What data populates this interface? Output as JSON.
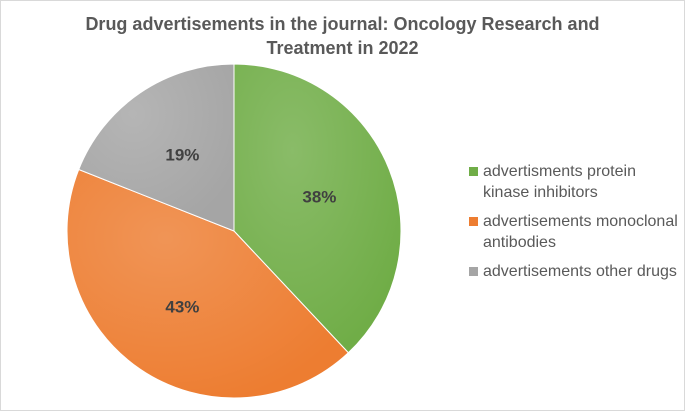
{
  "chart_data": {
    "type": "pie",
    "title": "Drug advertisements in the journal: Oncology Research and Treatment in 2022",
    "slices": [
      {
        "label": "advertisments protein kinase inhibitors",
        "value": 38,
        "display": "38%",
        "color": "#70ad47"
      },
      {
        "label": "advertisements monoclonal antibodies",
        "value": 43,
        "display": "43%",
        "color": "#ed7d31"
      },
      {
        "label": "advertisements other drugs",
        "value": 19,
        "display": "19%",
        "color": "#a5a5a5"
      }
    ],
    "start": "top",
    "direction": "clockwise",
    "legend_position": "right"
  }
}
